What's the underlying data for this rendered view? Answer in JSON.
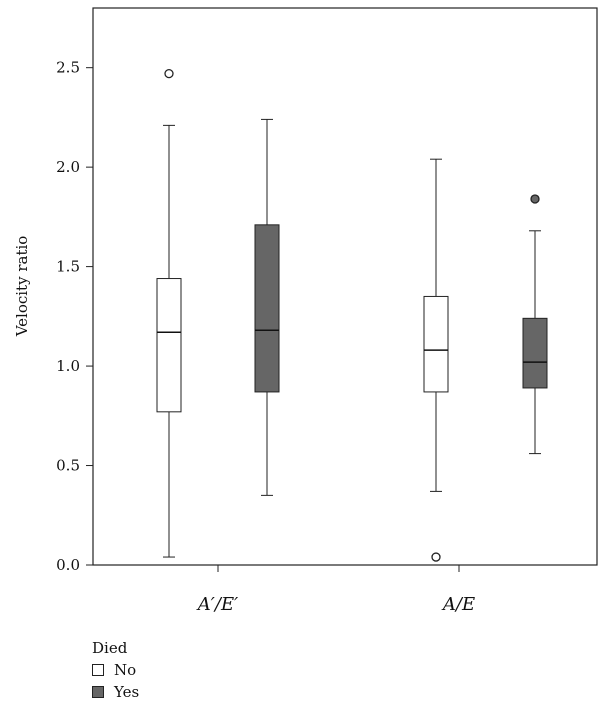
{
  "chart_data": {
    "type": "box",
    "ylabel": "Velocity ratio",
    "ylim": [
      0,
      2.8
    ],
    "yticks": [
      "0.0",
      "0.5",
      "1.0",
      "1.5",
      "2.0",
      "2.5"
    ],
    "categories": [
      "A′/E′",
      "A/E"
    ],
    "legend": {
      "title": "Died",
      "items": [
        {
          "label": "No",
          "color": "#ffffff"
        },
        {
          "label": "Yes",
          "color": "#666666"
        }
      ]
    },
    "boxes": [
      {
        "category": "A′/E′",
        "group": "No",
        "whisker_low": 0.04,
        "q1": 0.77,
        "median": 1.17,
        "q3": 1.44,
        "whisker_high": 2.21,
        "outliers": [
          2.47
        ]
      },
      {
        "category": "A′/E′",
        "group": "Yes",
        "whisker_low": 0.35,
        "q1": 0.87,
        "median": 1.18,
        "q3": 1.71,
        "whisker_high": 2.24,
        "outliers": []
      },
      {
        "category": "A/E",
        "group": "No",
        "whisker_low": 0.37,
        "q1": 0.87,
        "median": 1.08,
        "q3": 1.35,
        "whisker_high": 2.04,
        "outliers": [
          0.04
        ]
      },
      {
        "category": "A/E",
        "group": "Yes",
        "whisker_low": 0.56,
        "q1": 0.89,
        "median": 1.02,
        "q3": 1.24,
        "whisker_high": 1.68,
        "outliers": [
          1.84
        ]
      }
    ]
  }
}
